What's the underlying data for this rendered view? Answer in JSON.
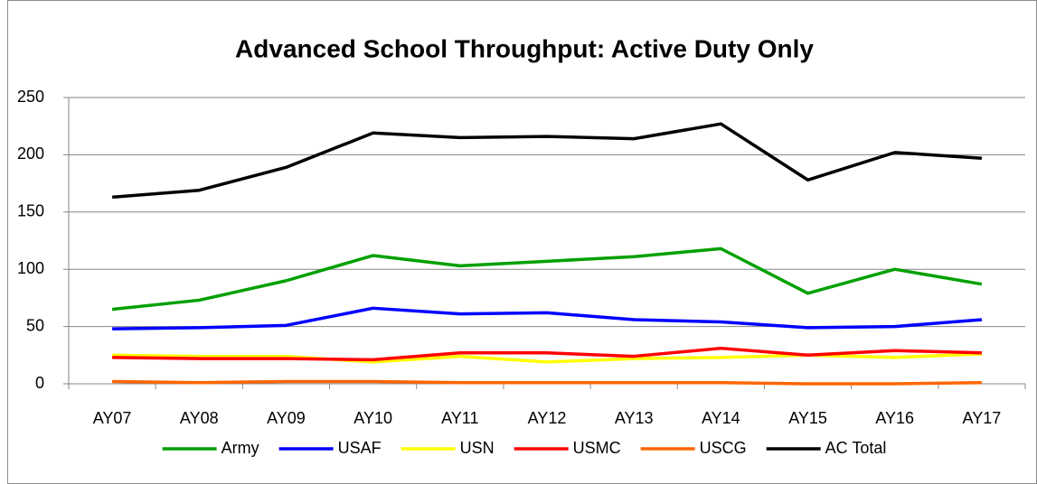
{
  "chart_data": {
    "type": "line",
    "title": "Advanced School Throughput: Active Duty Only",
    "categories": [
      "AY07",
      "AY08",
      "AY09",
      "AY10",
      "AY11",
      "AY12",
      "AY13",
      "AY14",
      "AY15",
      "AY16",
      "AY17"
    ],
    "series": [
      {
        "name": "Army",
        "color": "#00a000",
        "values": [
          65,
          73,
          90,
          112,
          103,
          107,
          111,
          118,
          79,
          100,
          87
        ]
      },
      {
        "name": "USAF",
        "color": "#0000ff",
        "values": [
          48,
          49,
          51,
          66,
          61,
          62,
          56,
          54,
          49,
          50,
          56
        ]
      },
      {
        "name": "USN",
        "color": "#ffff00",
        "values": [
          25,
          24,
          24,
          19,
          24,
          19,
          22,
          23,
          25,
          23,
          26
        ]
      },
      {
        "name": "USMC",
        "color": "#ff0000",
        "values": [
          23,
          22,
          22,
          21,
          27,
          27,
          24,
          31,
          25,
          29,
          27
        ]
      },
      {
        "name": "USCG",
        "color": "#ff6600",
        "values": [
          2,
          1,
          2,
          2,
          1,
          1,
          1,
          1,
          0,
          0,
          1
        ]
      },
      {
        "name": "AC Total",
        "color": "#000000",
        "values": [
          163,
          169,
          189,
          219,
          215,
          216,
          214,
          227,
          178,
          202,
          197
        ]
      }
    ],
    "ylim": [
      0,
      250
    ],
    "yticks": [
      0,
      50,
      100,
      150,
      200,
      250
    ],
    "grid": true,
    "legend": "bottom"
  }
}
